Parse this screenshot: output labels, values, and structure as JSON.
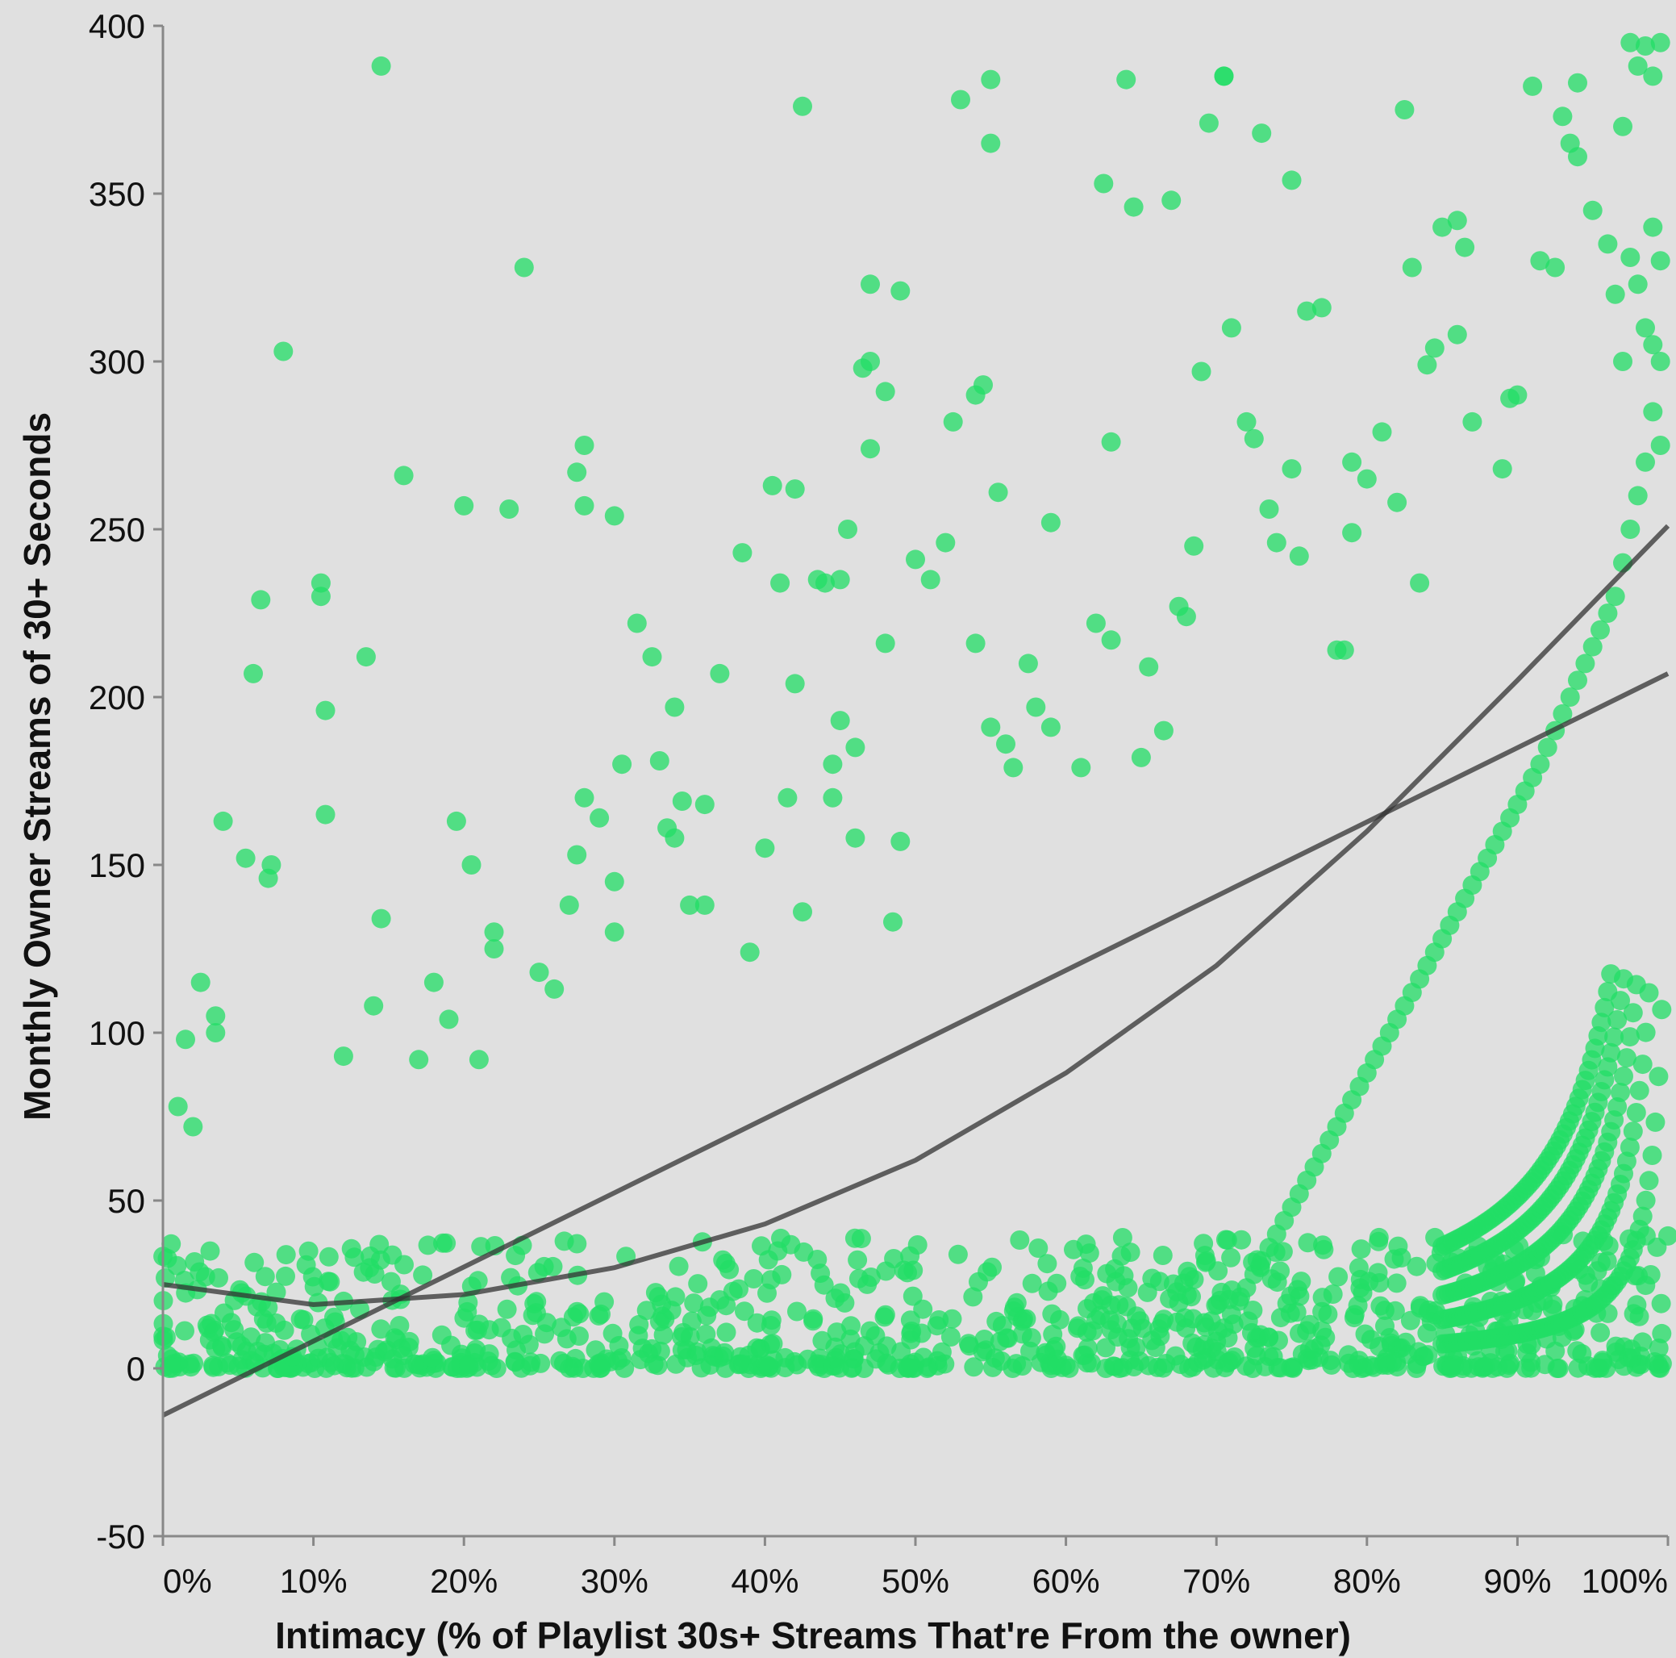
{
  "chart_data": {
    "type": "scatter",
    "title": "",
    "xlabel": "Intimacy (% of Playlist 30s+ Streams That're From the owner)",
    "ylabel": "Monthly Owner Streams of 30+ Seconds",
    "xlim": [
      0,
      1
    ],
    "ylim": [
      -50,
      400
    ],
    "x_ticks": [
      {
        "value": 0.0,
        "label": "0%"
      },
      {
        "value": 0.1,
        "label": "10%"
      },
      {
        "value": 0.2,
        "label": "20%"
      },
      {
        "value": 0.3,
        "label": "30%"
      },
      {
        "value": 0.4,
        "label": "40%"
      },
      {
        "value": 0.5,
        "label": "50%"
      },
      {
        "value": 0.6,
        "label": "60%"
      },
      {
        "value": 0.7,
        "label": "70%"
      },
      {
        "value": 0.8,
        "label": "80%"
      },
      {
        "value": 0.9,
        "label": "90%"
      },
      {
        "value": 1.0,
        "label": "100%"
      }
    ],
    "y_ticks": [
      {
        "value": 400,
        "label": "400"
      },
      {
        "value": 350,
        "label": "350"
      },
      {
        "value": 300,
        "label": "300"
      },
      {
        "value": 250,
        "label": "250"
      },
      {
        "value": 200,
        "label": "200"
      },
      {
        "value": 150,
        "label": "150"
      },
      {
        "value": 100,
        "label": "100"
      },
      {
        "value": 50,
        "label": "50"
      },
      {
        "value": 0,
        "label": "0"
      },
      {
        "value": -50,
        "label": "-50"
      }
    ],
    "grid": false,
    "point_color": "#22dd66",
    "line_color": "#333333",
    "points": [
      [
        0.01,
        78
      ],
      [
        0.02,
        72
      ],
      [
        0.015,
        98
      ],
      [
        0.025,
        115
      ],
      [
        0.035,
        105
      ],
      [
        0.035,
        100
      ],
      [
        0.04,
        163
      ],
      [
        0.06,
        207
      ],
      [
        0.055,
        152
      ],
      [
        0.065,
        229
      ],
      [
        0.07,
        146
      ],
      [
        0.072,
        150
      ],
      [
        0.08,
        303
      ],
      [
        0.105,
        234
      ],
      [
        0.105,
        230
      ],
      [
        0.108,
        196
      ],
      [
        0.108,
        165
      ],
      [
        0.145,
        388
      ],
      [
        0.135,
        212
      ],
      [
        0.145,
        134
      ],
      [
        0.16,
        266
      ],
      [
        0.195,
        163
      ],
      [
        0.2,
        257
      ],
      [
        0.205,
        150
      ],
      [
        0.23,
        256
      ],
      [
        0.24,
        328
      ],
      [
        0.12,
        93
      ],
      [
        0.14,
        108
      ],
      [
        0.17,
        92
      ],
      [
        0.18,
        115
      ],
      [
        0.19,
        104
      ],
      [
        0.21,
        92
      ],
      [
        0.22,
        130
      ],
      [
        0.22,
        125
      ],
      [
        0.25,
        118
      ],
      [
        0.26,
        113
      ],
      [
        0.27,
        138
      ],
      [
        0.275,
        153
      ],
      [
        0.275,
        267
      ],
      [
        0.28,
        275
      ],
      [
        0.28,
        257
      ],
      [
        0.28,
        170
      ],
      [
        0.3,
        254
      ],
      [
        0.29,
        164
      ],
      [
        0.3,
        145
      ],
      [
        0.3,
        130
      ],
      [
        0.305,
        180
      ],
      [
        0.315,
        222
      ],
      [
        0.325,
        212
      ],
      [
        0.33,
        181
      ],
      [
        0.335,
        161
      ],
      [
        0.34,
        197
      ],
      [
        0.34,
        158
      ],
      [
        0.345,
        169
      ],
      [
        0.35,
        138
      ],
      [
        0.36,
        168
      ],
      [
        0.36,
        138
      ],
      [
        0.37,
        207
      ],
      [
        0.385,
        243
      ],
      [
        0.39,
        124
      ],
      [
        0.4,
        155
      ],
      [
        0.405,
        263
      ],
      [
        0.41,
        234
      ],
      [
        0.415,
        170
      ],
      [
        0.42,
        262
      ],
      [
        0.42,
        204
      ],
      [
        0.425,
        376
      ],
      [
        0.425,
        136
      ],
      [
        0.435,
        235
      ],
      [
        0.44,
        234
      ],
      [
        0.445,
        180
      ],
      [
        0.445,
        170
      ],
      [
        0.45,
        235
      ],
      [
        0.45,
        193
      ],
      [
        0.455,
        250
      ],
      [
        0.46,
        185
      ],
      [
        0.46,
        158
      ],
      [
        0.465,
        298
      ],
      [
        0.47,
        300
      ],
      [
        0.47,
        274
      ],
      [
        0.47,
        323
      ],
      [
        0.48,
        291
      ],
      [
        0.48,
        216
      ],
      [
        0.485,
        133
      ],
      [
        0.49,
        321
      ],
      [
        0.49,
        157
      ],
      [
        0.5,
        241
      ],
      [
        0.51,
        235
      ],
      [
        0.52,
        246
      ],
      [
        0.525,
        282
      ],
      [
        0.53,
        378
      ],
      [
        0.54,
        216
      ],
      [
        0.54,
        290
      ],
      [
        0.545,
        293
      ],
      [
        0.55,
        384
      ],
      [
        0.55,
        365
      ],
      [
        0.55,
        191
      ],
      [
        0.555,
        261
      ],
      [
        0.56,
        186
      ],
      [
        0.565,
        179
      ],
      [
        0.575,
        210
      ],
      [
        0.58,
        197
      ],
      [
        0.59,
        252
      ],
      [
        0.59,
        191
      ],
      [
        0.61,
        179
      ],
      [
        0.62,
        222
      ],
      [
        0.625,
        353
      ],
      [
        0.63,
        276
      ],
      [
        0.63,
        217
      ],
      [
        0.64,
        384
      ],
      [
        0.645,
        346
      ],
      [
        0.65,
        182
      ],
      [
        0.655,
        209
      ],
      [
        0.665,
        190
      ],
      [
        0.67,
        348
      ],
      [
        0.675,
        227
      ],
      [
        0.68,
        224
      ],
      [
        0.685,
        245
      ],
      [
        0.69,
        297
      ],
      [
        0.695,
        371
      ],
      [
        0.705,
        385
      ],
      [
        0.705,
        385
      ],
      [
        0.71,
        310
      ],
      [
        0.72,
        282
      ],
      [
        0.725,
        277
      ],
      [
        0.73,
        368
      ],
      [
        0.735,
        256
      ],
      [
        0.74,
        246
      ],
      [
        0.75,
        354
      ],
      [
        0.75,
        268
      ],
      [
        0.755,
        242
      ],
      [
        0.76,
        315
      ],
      [
        0.77,
        316
      ],
      [
        0.78,
        214
      ],
      [
        0.785,
        214
      ],
      [
        0.79,
        249
      ],
      [
        0.79,
        270
      ],
      [
        0.8,
        265
      ],
      [
        0.81,
        279
      ],
      [
        0.82,
        258
      ],
      [
        0.825,
        375
      ],
      [
        0.83,
        328
      ],
      [
        0.835,
        234
      ],
      [
        0.84,
        299
      ],
      [
        0.845,
        304
      ],
      [
        0.85,
        340
      ],
      [
        0.86,
        342
      ],
      [
        0.865,
        334
      ],
      [
        0.86,
        308
      ],
      [
        0.87,
        282
      ],
      [
        0.89,
        268
      ],
      [
        0.895,
        289
      ],
      [
        0.9,
        290
      ],
      [
        0.91,
        382
      ],
      [
        0.915,
        330
      ],
      [
        0.925,
        328
      ],
      [
        0.93,
        373
      ],
      [
        0.935,
        365
      ],
      [
        0.94,
        361
      ],
      [
        0.94,
        383
      ],
      [
        0.95,
        345
      ],
      [
        0.96,
        335
      ],
      [
        0.97,
        370
      ],
      [
        0.975,
        395
      ],
      [
        0.98,
        388
      ],
      [
        0.985,
        394
      ],
      [
        0.99,
        385
      ],
      [
        0.995,
        395
      ],
      [
        0.99,
        340
      ],
      [
        0.995,
        330
      ],
      [
        0.975,
        331
      ],
      [
        0.98,
        323
      ],
      [
        0.965,
        320
      ],
      [
        0.97,
        300
      ],
      [
        0.985,
        310
      ],
      [
        0.99,
        305
      ],
      [
        0.995,
        300
      ],
      [
        0.99,
        285
      ],
      [
        0.995,
        275
      ],
      [
        0.985,
        270
      ],
      [
        0.98,
        260
      ],
      [
        0.975,
        250
      ],
      [
        0.97,
        240
      ],
      [
        0.965,
        230
      ],
      [
        0.96,
        225
      ],
      [
        0.955,
        220
      ],
      [
        0.95,
        215
      ],
      [
        0.945,
        210
      ],
      [
        0.94,
        205
      ],
      [
        0.935,
        200
      ],
      [
        0.93,
        195
      ],
      [
        0.925,
        190
      ],
      [
        0.92,
        185
      ],
      [
        0.915,
        180
      ],
      [
        0.91,
        176
      ],
      [
        0.905,
        172
      ],
      [
        0.9,
        168
      ],
      [
        0.895,
        164
      ],
      [
        0.89,
        160
      ],
      [
        0.885,
        156
      ],
      [
        0.88,
        152
      ],
      [
        0.875,
        148
      ],
      [
        0.87,
        144
      ],
      [
        0.865,
        140
      ],
      [
        0.86,
        136
      ],
      [
        0.855,
        132
      ],
      [
        0.85,
        128
      ],
      [
        0.845,
        124
      ],
      [
        0.84,
        120
      ],
      [
        0.835,
        116
      ],
      [
        0.83,
        112
      ],
      [
        0.825,
        108
      ],
      [
        0.82,
        104
      ],
      [
        0.815,
        100
      ],
      [
        0.81,
        96
      ],
      [
        0.805,
        92
      ],
      [
        0.8,
        88
      ],
      [
        0.795,
        84
      ],
      [
        0.79,
        80
      ],
      [
        0.785,
        76
      ],
      [
        0.78,
        72
      ],
      [
        0.775,
        68
      ],
      [
        0.77,
        64
      ],
      [
        0.765,
        60
      ],
      [
        0.76,
        56
      ],
      [
        0.755,
        52
      ],
      [
        0.75,
        48
      ],
      [
        0.745,
        44
      ],
      [
        0.74,
        40
      ],
      [
        0.735,
        36
      ],
      [
        0.73,
        32
      ],
      [
        0.725,
        28
      ],
      [
        0.72,
        24
      ],
      [
        0.715,
        20
      ],
      [
        0.71,
        16
      ],
      [
        0.705,
        12
      ],
      [
        0.7,
        8
      ]
    ],
    "series": [
      {
        "name": "",
        "kind": "linear-fit",
        "x": [
          0,
          1
        ],
        "y": [
          -14,
          207
        ]
      },
      {
        "name": "",
        "kind": "quadratic-fit",
        "x": [
          0,
          0.1,
          0.2,
          0.3,
          0.4,
          0.5,
          0.6,
          0.7,
          0.8,
          0.9,
          1.0
        ],
        "y": [
          25,
          19,
          22,
          30,
          43,
          62,
          88,
          120,
          160,
          205,
          251
        ]
      }
    ]
  }
}
